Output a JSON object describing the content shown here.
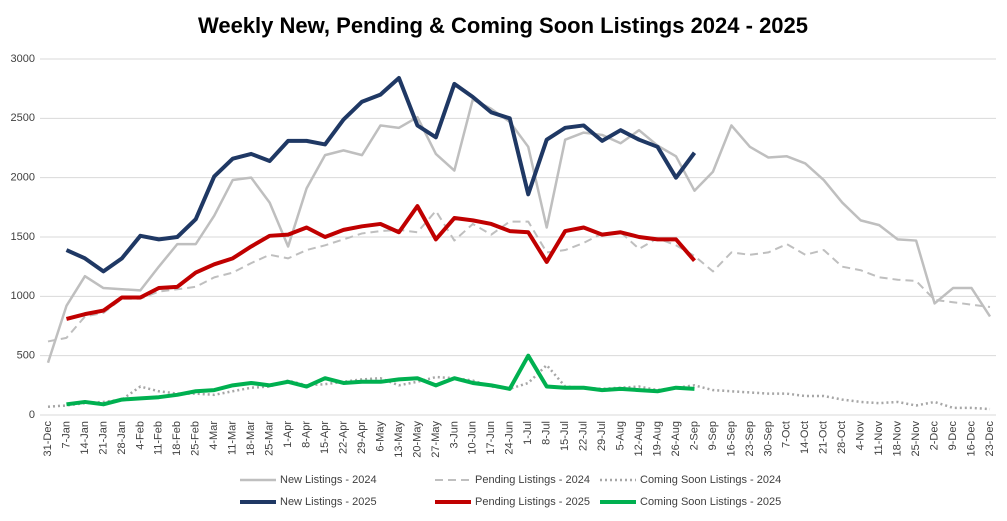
{
  "chart_data": {
    "type": "line",
    "title": "Weekly New, Pending & Coming Soon Listings 2024 - 2025",
    "categories": [
      "31-Dec",
      "7-Jan",
      "14-Jan",
      "21-Jan",
      "28-Jan",
      "4-Feb",
      "11-Feb",
      "18-Feb",
      "25-Feb",
      "4-Mar",
      "11-Mar",
      "18-Mar",
      "25-Mar",
      "1-Apr",
      "8-Apr",
      "15-Apr",
      "22-Apr",
      "29-Apr",
      "6-May",
      "13-May",
      "20-May",
      "27-May",
      "3-Jun",
      "10-Jun",
      "17-Jun",
      "24-Jun",
      "1-Jul",
      "8-Jul",
      "15-Jul",
      "22-Jul",
      "29-Jul",
      "5-Aug",
      "12-Aug",
      "19-Aug",
      "26-Aug",
      "2-Sep",
      "9-Sep",
      "16-Sep",
      "23-Sep",
      "30-Sep",
      "7-Oct",
      "14-Oct",
      "21-Oct",
      "28-Oct",
      "4-Nov",
      "11-Nov",
      "18-Nov",
      "25-Nov",
      "2-Dec",
      "9-Dec",
      "16-Dec",
      "23-Dec"
    ],
    "ylim": [
      0,
      3000
    ],
    "yticks": [
      0,
      500,
      1000,
      1500,
      2000,
      2500,
      3000
    ],
    "grid": true,
    "legend": "bottom",
    "series": [
      {
        "name": "New Listings - 2024",
        "color": "#bfbfbf",
        "style": "solid",
        "line_width": 2.5,
        "values": [
          440,
          920,
          1170,
          1070,
          1060,
          1050,
          1250,
          1440,
          1440,
          1680,
          1980,
          2000,
          1790,
          1420,
          1910,
          2190,
          2230,
          2190,
          2440,
          2420,
          2510,
          2200,
          2060,
          2660,
          2580,
          2470,
          2260,
          1580,
          2320,
          2380,
          2360,
          2290,
          2400,
          2270,
          2180,
          1890,
          2050,
          2440,
          2260,
          2170,
          2180,
          2120,
          1980,
          1790,
          1640,
          1600,
          1480,
          1470,
          940,
          1070,
          1070,
          830
        ]
      },
      {
        "name": "Pending Listings - 2024",
        "color": "#bfbfbf",
        "style": "dashed",
        "line_width": 2,
        "values": [
          620,
          650,
          830,
          860,
          980,
          980,
          1040,
          1060,
          1080,
          1160,
          1200,
          1280,
          1350,
          1320,
          1390,
          1430,
          1480,
          1530,
          1550,
          1560,
          1540,
          1720,
          1470,
          1610,
          1520,
          1630,
          1630,
          1370,
          1390,
          1450,
          1530,
          1540,
          1400,
          1490,
          1430,
          1340,
          1210,
          1370,
          1350,
          1370,
          1440,
          1350,
          1390,
          1250,
          1220,
          1160,
          1140,
          1130,
          970,
          950,
          930,
          910
        ]
      },
      {
        "name": "Coming Soon Listings - 2024",
        "color": "#a6a6a6",
        "style": "dotted",
        "line_width": 2.5,
        "values": [
          70,
          80,
          100,
          110,
          130,
          240,
          200,
          180,
          180,
          170,
          200,
          230,
          240,
          290,
          250,
          260,
          280,
          300,
          310,
          250,
          280,
          320,
          310,
          290,
          240,
          220,
          270,
          420,
          240,
          230,
          220,
          230,
          240,
          210,
          230,
          250,
          210,
          200,
          190,
          180,
          180,
          160,
          160,
          130,
          110,
          100,
          110,
          80,
          110,
          60,
          60,
          50
        ]
      },
      {
        "name": "New Listings - 2025",
        "color": "#1f3864",
        "style": "solid",
        "line_width": 4,
        "values": [
          null,
          1390,
          1320,
          1210,
          1320,
          1510,
          1480,
          1500,
          1650,
          2010,
          2160,
          2200,
          2140,
          2310,
          2310,
          2280,
          2490,
          2640,
          2700,
          2840,
          2440,
          2340,
          2790,
          2680,
          2550,
          2500,
          1860,
          2320,
          2420,
          2440,
          2310,
          2400,
          2320,
          2260,
          2000,
          2210,
          null,
          null,
          null,
          null,
          null,
          null,
          null,
          null,
          null,
          null,
          null,
          null,
          null,
          null,
          null,
          null
        ]
      },
      {
        "name": "Pending Listings - 2025",
        "color": "#c00000",
        "style": "solid",
        "line_width": 4,
        "values": [
          null,
          810,
          850,
          880,
          990,
          990,
          1070,
          1080,
          1200,
          1270,
          1320,
          1420,
          1510,
          1520,
          1580,
          1500,
          1560,
          1590,
          1610,
          1540,
          1760,
          1480,
          1660,
          1640,
          1610,
          1550,
          1540,
          1290,
          1550,
          1580,
          1520,
          1540,
          1500,
          1480,
          1480,
          1300,
          null,
          null,
          null,
          null,
          null,
          null,
          null,
          null,
          null,
          null,
          null,
          null,
          null,
          null,
          null,
          null
        ]
      },
      {
        "name": "Coming Soon Listings - 2025",
        "color": "#00b050",
        "style": "solid",
        "line_width": 4,
        "values": [
          null,
          90,
          110,
          90,
          130,
          140,
          150,
          170,
          200,
          210,
          250,
          270,
          250,
          280,
          240,
          310,
          270,
          280,
          280,
          300,
          310,
          250,
          310,
          270,
          250,
          220,
          500,
          240,
          230,
          230,
          210,
          220,
          210,
          200,
          230,
          220,
          null,
          null,
          null,
          null,
          null,
          null,
          null,
          null,
          null,
          null,
          null,
          null,
          null,
          null,
          null,
          null
        ]
      }
    ]
  }
}
